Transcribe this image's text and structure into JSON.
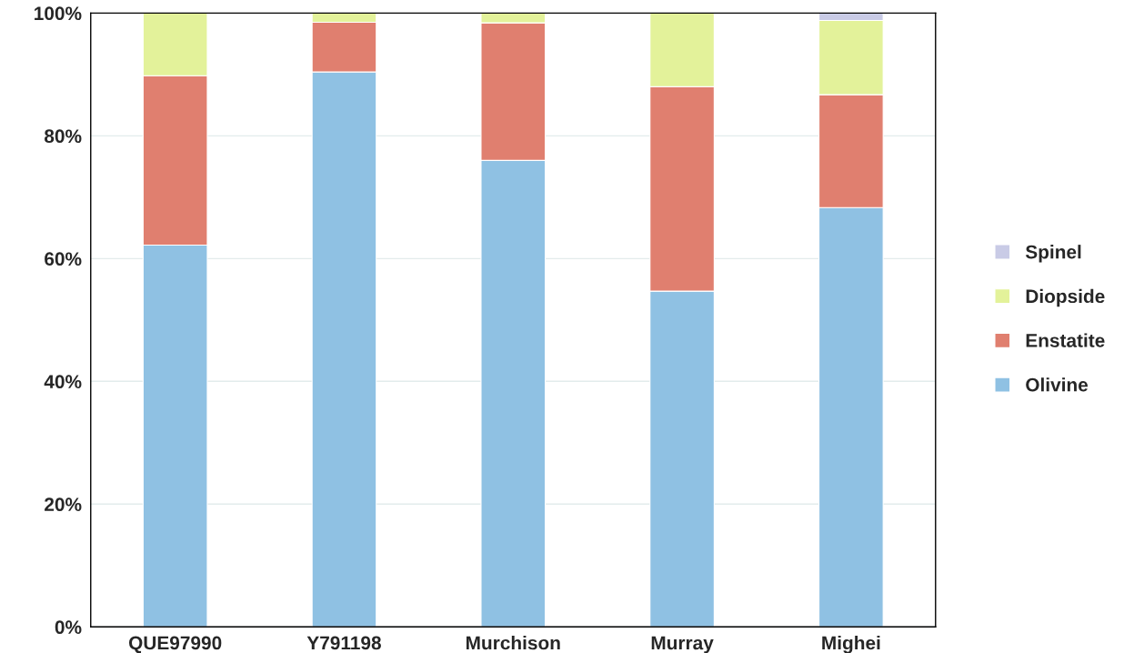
{
  "chart_data": {
    "type": "bar",
    "stacked": true,
    "categories": [
      "QUE97990",
      "Y791198",
      "Murchison",
      "Murray",
      "Mighei"
    ],
    "series": [
      {
        "name": "Olivine",
        "color": "#8fc1e3",
        "values": [
          62.2,
          90.4,
          76.0,
          54.7,
          68.3
        ]
      },
      {
        "name": "Enstatite",
        "color": "#e07f6f",
        "values": [
          27.6,
          8.1,
          22.4,
          33.3,
          18.4
        ]
      },
      {
        "name": "Diopside",
        "color": "#e3f29a",
        "values": [
          10.2,
          1.5,
          1.6,
          12.0,
          12.1
        ]
      },
      {
        "name": "Spinel",
        "color": "#c9cbe6",
        "values": [
          null,
          null,
          null,
          null,
          1.2
        ]
      }
    ],
    "ylim": [
      0,
      100
    ],
    "yticks": [
      {
        "value": 0,
        "label": "0%"
      },
      {
        "value": 20,
        "label": "20%"
      },
      {
        "value": 40,
        "label": "40%"
      },
      {
        "value": 60,
        "label": "60%"
      },
      {
        "value": 80,
        "label": "80%"
      },
      {
        "value": 100,
        "label": "100%"
      }
    ],
    "grid": "y",
    "legend": "right"
  }
}
